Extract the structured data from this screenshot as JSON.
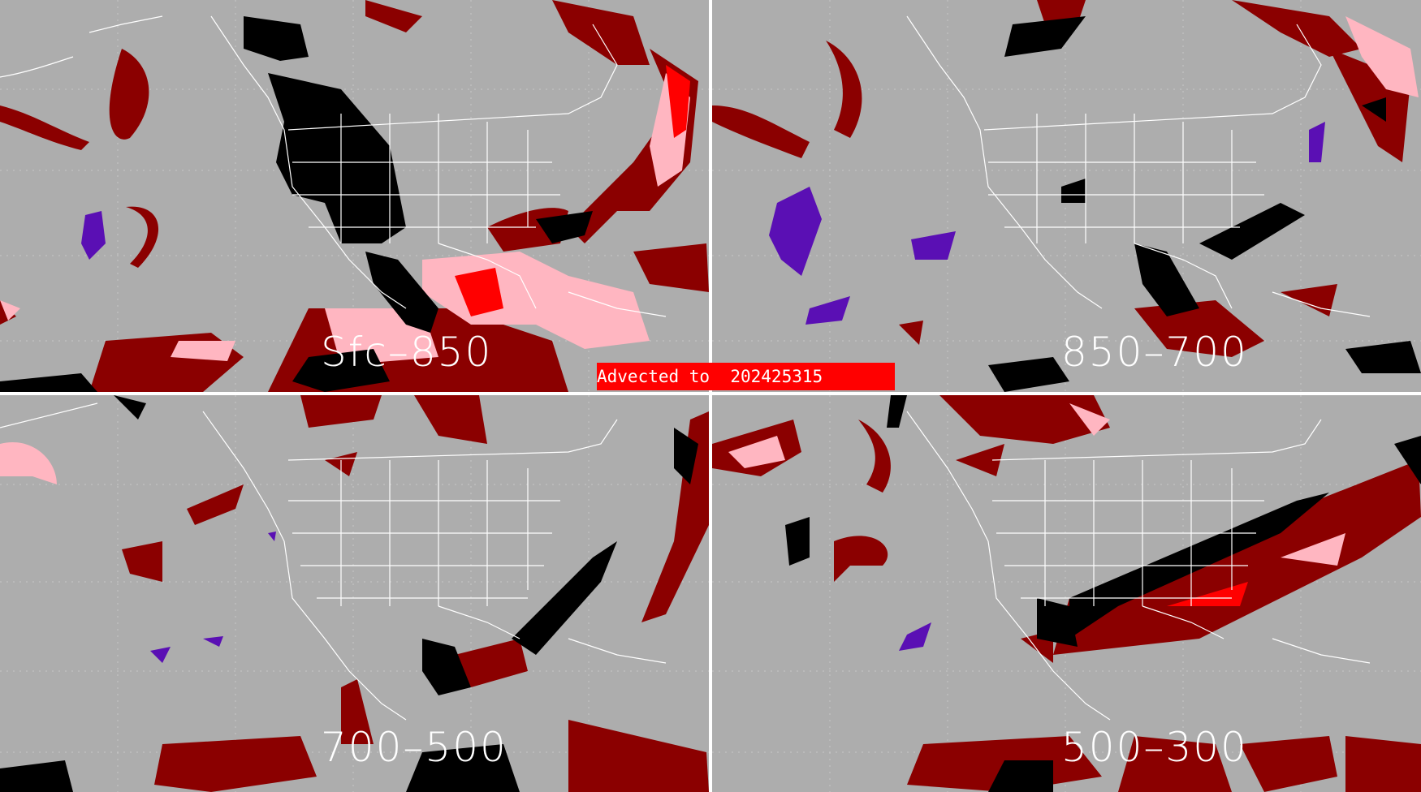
{
  "banner": {
    "text": "Advected to  202425315",
    "color": "#ff0000"
  },
  "panels": [
    {
      "id": "tl",
      "label": "Sfc–850"
    },
    {
      "id": "tr",
      "label": "850–700"
    },
    {
      "id": "bl",
      "label": "700–500"
    },
    {
      "id": "br",
      "label": "500–300"
    }
  ],
  "colors": {
    "background": "#adadad",
    "dark_red": "#8b0000",
    "pink": "#ffb6c1",
    "bright_red": "#ff0000",
    "black": "#000000",
    "purple": "#5a0fb4",
    "boundaries": "#ffffff"
  }
}
